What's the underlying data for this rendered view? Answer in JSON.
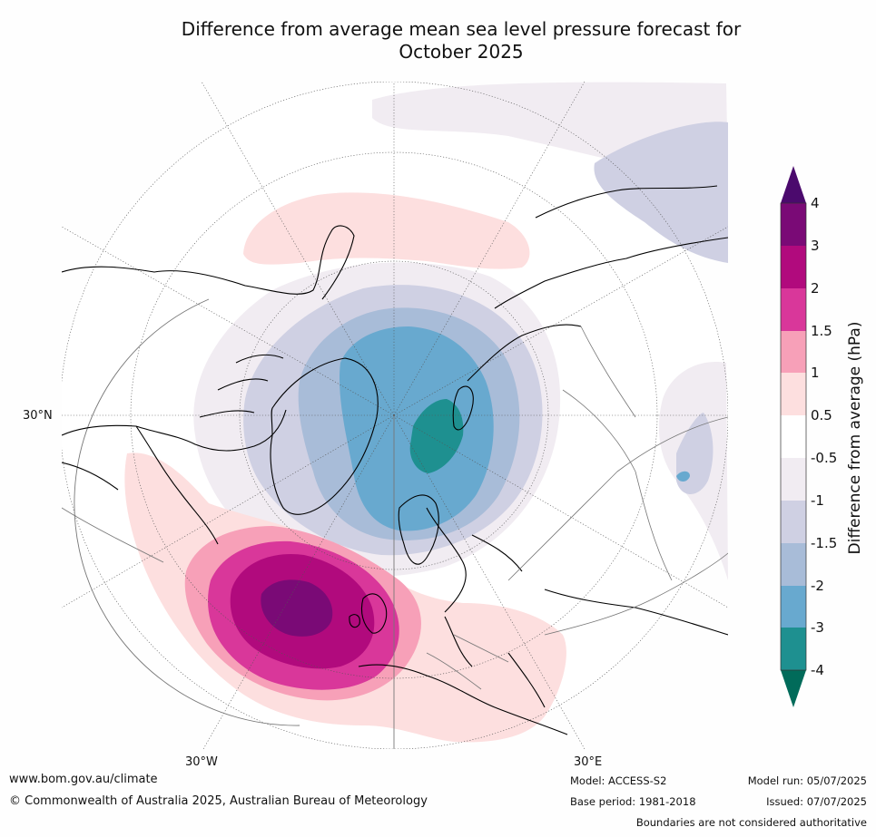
{
  "title_line1": "Difference from average mean sea level pressure forecast for",
  "title_line2": "October 2025",
  "axis_labels": {
    "lat30": "30°N",
    "lon_w": "30°W",
    "lon_e": "30°E"
  },
  "colorbar": {
    "label": "Difference from average (hPa)",
    "ticks": [
      "4",
      "3",
      "2",
      "1.5",
      "1",
      "0.5",
      "-0.5",
      "-1",
      "-1.5",
      "-2",
      "-3",
      "-4"
    ],
    "colors": {
      "above_4": "#4b0a6d",
      "3_to_4": "#7a0a76",
      "2_to_3": "#b10a7d",
      "1.5_to_2": "#d9379a",
      "1_to_1.5": "#f7a0b8",
      "0.5_to_1": "#fddfdf",
      "neutral": "#ffffff",
      "neg0.5_to_neg1": "#f1ecf2",
      "neg1_to_neg1.5": "#cfd0e3",
      "neg1.5_to_neg2": "#a8bcd8",
      "neg2_to_neg3": "#68a9cf",
      "neg3_to_neg4": "#1e9090",
      "below_neg4": "#016b5a"
    }
  },
  "footer": {
    "url": "www.bom.gov.au/climate",
    "copyright": "© Commonwealth of Australia 2025, Australian Bureau of Meteorology",
    "model": "Model: ACCESS-S2",
    "base_period": "Base period: 1981-2018",
    "model_run": "Model run: 05/07/2025",
    "issued": "Issued: 07/07/2025",
    "disclaimer": "Boundaries are not considered authoritative"
  }
}
